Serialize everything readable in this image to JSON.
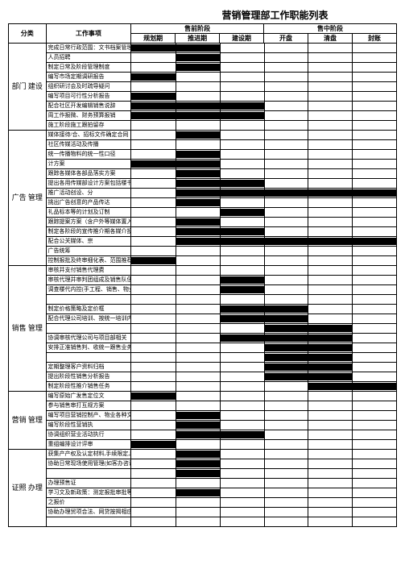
{
  "title": "营销管理部工作职能列表",
  "header": {
    "cat": "分类",
    "item": "工作事项",
    "pre_sale": "售前阶段",
    "on_sale": "售中阶段",
    "phases": [
      "规划期",
      "推进期",
      "建设期",
      "开盘",
      "清盘",
      "封账"
    ]
  },
  "categories": [
    {
      "name": "部门  建设",
      "rows": [
        {
          "text": "完成日常行政范围：文书档案管理、部门制度等",
          "bar": {
            "start": 0,
            "span": 2
          }
        },
        {
          "text": "人员招聘",
          "bar": {
            "start": 1,
            "span": 1
          }
        },
        {
          "text": "制定日常及阶段管理制度",
          "bar": {
            "start": 1,
            "span": 1
          }
        },
        {
          "text": "编写市场定期调研报告",
          "bar": {
            "start": 0,
            "span": 1
          }
        },
        {
          "text": "组织研讨会及时疏导疑问",
          "bar": null
        },
        {
          "text": "编写项目可行性分析报告",
          "bar": {
            "start": 0,
            "span": 1
          }
        },
        {
          "text": "配合社区开发编辑销售说辞",
          "bar": {
            "start": 0,
            "span": 3
          }
        },
        {
          "text": "周工作报微、财务预算报销",
          "bar": {
            "start": 0,
            "span": 3
          }
        },
        {
          "text": "施工阶段施工跟拍留存",
          "bar": null
        }
      ]
    },
    {
      "name": "广告  管理",
      "rows": [
        {
          "text": "媒体接待/合、招标文件确定合同",
          "bar": {
            "start": 1,
            "span": 1
          }
        },
        {
          "text": "社区传媒活动及传播",
          "bar": null
        },
        {
          "text": "统一传播物料的统一性口径",
          "bar": {
            "start": 1,
            "span": 1
          }
        },
        {
          "text": "计方案",
          "bar": {
            "start": 0,
            "span": 2
          }
        },
        {
          "text": "跟踪各媒体各部品落实方案",
          "bar": {
            "start": 1,
            "span": 1
          }
        },
        {
          "text": "提出各用传媒部设计方案包括楼书等文案",
          "bar": {
            "start": 1,
            "span": 2
          }
        },
        {
          "text": "推广活动创设、分",
          "bar": {
            "start": 1,
            "span": 5
          }
        },
        {
          "text": "挑出广告创意的产品传达",
          "bar": {
            "start": 1,
            "span": 1
          }
        },
        {
          "text": "礼品标本等的计划及订制",
          "bar": {
            "start": 2,
            "span": 1
          }
        },
        {
          "text": "跟踪提案方案（含户外等媒体置入发布",
          "bar": {
            "start": 1,
            "span": 1
          }
        },
        {
          "text": "制定各阶段的宣传推介期各媒介投放统筹排期、资",
          "bar": {
            "start": 1,
            "span": 2
          }
        },
        {
          "text": "配合公关媒体、宗",
          "bar": {
            "start": 1,
            "span": 5
          }
        },
        {
          "text": "广告统筹",
          "bar": null
        },
        {
          "text": "控制报批及终审细化表、范围推荐等签订项目代理发展合同",
          "bar": {
            "start": 0,
            "span": 1
          }
        }
      ]
    },
    {
      "name": "销售  管理",
      "rows": [
        {
          "text": "审核并支付销售代理费",
          "bar": null
        },
        {
          "text": "审核代理并审判团组成及销售队伍组建、培训",
          "bar": {
            "start": 2,
            "span": 1
          }
        },
        {
          "text": "调查楼代内控(手工程、销售、物业、价目)公司的协调及配合销售开展销售",
          "bar": {
            "start": 2,
            "span": 1
          }
        },
        {
          "text": "",
          "bar": null
        },
        {
          "text": "制定价格策略及定价框",
          "bar": {
            "start": 2,
            "span": 2
          }
        },
        {
          "text": "配合代理公司培训、按统一培训内容销售培训、出市场躯部客数据、部门综",
          "bar": {
            "start": 2,
            "span": 2
          }
        },
        {
          "text": "",
          "bar": {
            "start": 3,
            "span": 2
          }
        },
        {
          "text": "协调审核代理公司与项目部相关（设施",
          "bar": {
            "start": 2,
            "span": 3
          }
        },
        {
          "text": "安排正准销售判、收统一跟售业务监测案场各项销售工作执行",
          "bar": {
            "start": 3,
            "span": 2
          }
        },
        {
          "text": "",
          "bar": {
            "start": 3,
            "span": 2
          }
        },
        {
          "text": "定期整理客户资料归档",
          "bar": {
            "start": 3,
            "span": 2
          }
        },
        {
          "text": "提出阶段性销售分析报告",
          "bar": {
            "start": 3,
            "span": 2
          }
        },
        {
          "text": "制定阶段性推介销售任务",
          "bar": {
            "start": 4,
            "span": 2
          }
        }
      ]
    },
    {
      "name": "营销  管理",
      "rows": [
        {
          "text": "编写原始广发售定位文",
          "bar": {
            "start": 0,
            "span": 1
          }
        },
        {
          "text": "参与销售审打互规方案",
          "bar": null
        },
        {
          "text": "编写项目营销控制产、物业各种文件的竞",
          "bar": {
            "start": 1,
            "span": 1
          }
        },
        {
          "text": "编写阶段性营销执",
          "bar": {
            "start": 1,
            "span": 1
          }
        },
        {
          "text": "协调组织营业活动执行",
          "bar": {
            "start": 1,
            "span": 2
          }
        },
        {
          "text": "重组编排设计评审",
          "bar": {
            "start": 0,
            "span": 1
          }
        }
      ]
    },
    {
      "name": "证照  办理",
      "rows": [
        {
          "text": "获集产产权及认定材料,手续限定,静气咨询",
          "bar": {
            "start": 1,
            "span": 1
          }
        },
        {
          "text": "协助日常现场使用管理(如客办咨询、合同签订、完善新联名办理委托表交付工程竣工备案等",
          "bar": {
            "start": 1,
            "span": 1
          }
        },
        {
          "text": "",
          "bar": {
            "start": 1,
            "span": 1
          }
        },
        {
          "text": "办理预售证",
          "bar": null
        },
        {
          "text": "学习文及新政策：测定报批审批等一系列",
          "bar": {
            "start": 1,
            "span": 1
          }
        },
        {
          "text": "之报价",
          "bar": null
        },
        {
          "text": "协助办理贸项合法、网贷按揭相应统计技政合约",
          "bar": null
        },
        {
          "text": "",
          "bar": null
        }
      ]
    }
  ]
}
